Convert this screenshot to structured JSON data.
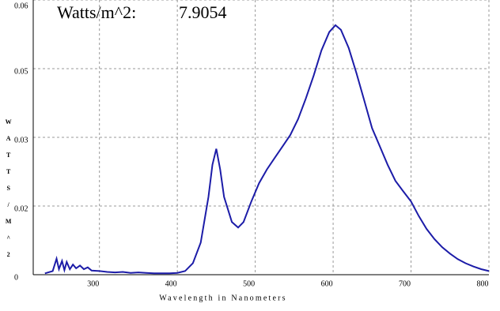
{
  "chart_data": {
    "type": "line",
    "annotations": [
      "Watts/m^2:",
      "7.9054"
    ],
    "xlabel": "Wavelength in Nanometers",
    "ylabel": "WATTS/M^2",
    "x": [
      230,
      240,
      245,
      248,
      252,
      255,
      258,
      262,
      266,
      270,
      275,
      280,
      285,
      290,
      300,
      310,
      320,
      330,
      340,
      350,
      360,
      370,
      380,
      390,
      400,
      410,
      420,
      430,
      440,
      445,
      450,
      455,
      460,
      470,
      478,
      485,
      495,
      505,
      515,
      525,
      535,
      545,
      555,
      565,
      575,
      585,
      595,
      603,
      610,
      620,
      630,
      640,
      650,
      660,
      670,
      680,
      690,
      700,
      710,
      720,
      730,
      740,
      750,
      760,
      770,
      780,
      790,
      800
    ],
    "series": [
      {
        "color": "#1c1ca8",
        "values": [
          0.0003,
          0.0008,
          0.0035,
          0.0012,
          0.003,
          0.001,
          0.0028,
          0.0012,
          0.0022,
          0.0014,
          0.002,
          0.0012,
          0.0016,
          0.0009,
          0.0008,
          0.0006,
          0.0005,
          0.0006,
          0.0004,
          0.0005,
          0.0004,
          0.0003,
          0.0003,
          0.0003,
          0.0004,
          0.0008,
          0.0025,
          0.007,
          0.017,
          0.024,
          0.0275,
          0.023,
          0.017,
          0.0115,
          0.0103,
          0.0115,
          0.016,
          0.02,
          0.023,
          0.0255,
          0.028,
          0.0305,
          0.034,
          0.0385,
          0.0435,
          0.049,
          0.053,
          0.0545,
          0.0535,
          0.0495,
          0.044,
          0.038,
          0.032,
          0.028,
          0.024,
          0.0205,
          0.0182,
          0.016,
          0.0128,
          0.01,
          0.0078,
          0.006,
          0.0046,
          0.0034,
          0.0025,
          0.0018,
          0.0012,
          0.0008
        ]
      }
    ],
    "xlim": [
      215,
      800
    ],
    "xticks": [
      300,
      400,
      500,
      600,
      700,
      800
    ],
    "ylim": [
      0,
      0.06
    ],
    "yticks": [
      0,
      {
        "value": 0.015,
        "label": "0.02"
      },
      0.03,
      {
        "value": 0.045,
        "label": "0.05"
      },
      0.06
    ],
    "grid": true
  }
}
